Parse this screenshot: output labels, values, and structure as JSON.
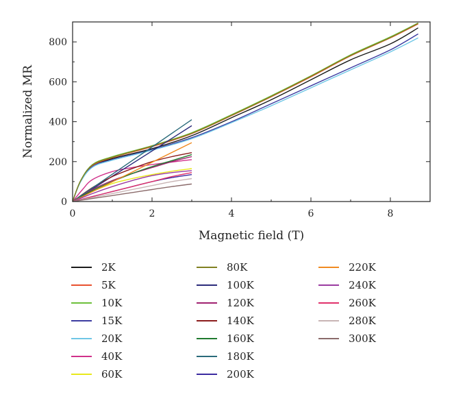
{
  "chart_data": {
    "type": "line",
    "title": "",
    "xlabel": "Magnetic field (T)",
    "ylabel": "Normalized MR",
    "xlim": [
      0,
      9
    ],
    "ylim": [
      0,
      900
    ],
    "xticks": [
      0,
      2,
      4,
      6,
      8
    ],
    "yticks": [
      0,
      200,
      400,
      600,
      800
    ],
    "grid": false,
    "legend_position": "bottom",
    "series": [
      {
        "name": "2K",
        "color": "#1a1a1a",
        "x": [
          0,
          0.2,
          0.5,
          1,
          2,
          3,
          4,
          5,
          6,
          7,
          8,
          8.7
        ],
        "y": [
          0,
          100,
          175,
          215,
          265,
          330,
          420,
          510,
          610,
          710,
          790,
          870
        ]
      },
      {
        "name": "5K",
        "color": "#e8502e",
        "x": [
          0,
          0.2,
          0.5,
          1,
          2,
          3,
          4,
          5,
          6,
          7,
          8,
          8.7
        ],
        "y": [
          0,
          102,
          180,
          220,
          275,
          340,
          430,
          525,
          625,
          730,
          820,
          890
        ]
      },
      {
        "name": "10K",
        "color": "#6cbf3a",
        "x": [
          0,
          0.2,
          0.5,
          1,
          2,
          3,
          4,
          5,
          6,
          7,
          8,
          8.7
        ],
        "y": [
          0,
          104,
          185,
          225,
          280,
          345,
          435,
          530,
          630,
          735,
          825,
          895
        ]
      },
      {
        "name": "15K",
        "color": "#3a3aa0",
        "x": [
          0,
          0.2,
          0.5,
          1,
          2,
          3,
          4,
          5,
          6,
          7,
          8,
          8.7
        ],
        "y": [
          0,
          100,
          175,
          210,
          260,
          320,
          400,
          490,
          580,
          670,
          760,
          840
        ]
      },
      {
        "name": "20K",
        "color": "#6ec6e6",
        "x": [
          0,
          0.2,
          0.5,
          1,
          2,
          3,
          4,
          5,
          6,
          7,
          8,
          8.7
        ],
        "y": [
          0,
          98,
          172,
          207,
          257,
          315,
          395,
          480,
          570,
          660,
          750,
          820
        ]
      },
      {
        "name": "40K",
        "color": "#d0308a",
        "x": [
          0,
          0.25,
          0.5,
          1,
          1.5,
          2,
          2.5,
          3
        ],
        "y": [
          0,
          60,
          110,
          150,
          170,
          185,
          198,
          210
        ]
      },
      {
        "name": "60K",
        "color": "#e8e81a",
        "x": [
          0,
          0.5,
          1,
          1.5,
          2,
          2.5,
          3
        ],
        "y": [
          0,
          50,
          90,
          115,
          135,
          152,
          165
        ]
      },
      {
        "name": "80K",
        "color": "#808020",
        "x": [
          0,
          0.2,
          0.5,
          1,
          2,
          3,
          4,
          5,
          6,
          7,
          8,
          8.7
        ],
        "y": [
          0,
          103,
          183,
          222,
          278,
          342,
          432,
          527,
          628,
          732,
          822,
          893
        ]
      },
      {
        "name": "100K",
        "color": "#2a2a7a",
        "x": [
          0,
          3
        ],
        "y": [
          0,
          380
        ]
      },
      {
        "name": "120K",
        "color": "#a02070",
        "x": [
          0,
          0.5,
          1,
          1.5,
          2,
          2.5,
          3
        ],
        "y": [
          0,
          60,
          105,
          140,
          170,
          200,
          225
        ]
      },
      {
        "name": "140K",
        "color": "#8a1a1a",
        "x": [
          0,
          0.5,
          1,
          1.5,
          2,
          2.5,
          3
        ],
        "y": [
          0,
          70,
          125,
          165,
          200,
          225,
          245
        ]
      },
      {
        "name": "160K",
        "color": "#1f7a2e",
        "x": [
          0,
          0.5,
          1,
          1.5,
          2,
          2.5,
          3
        ],
        "y": [
          0,
          55,
          100,
          140,
          175,
          205,
          235
        ]
      },
      {
        "name": "180K",
        "color": "#2a6a7a",
        "x": [
          0,
          3
        ],
        "y": [
          0,
          410
        ]
      },
      {
        "name": "200K",
        "color": "#3a2aa0",
        "x": [
          0,
          0.5,
          1,
          1.5,
          2,
          2.5,
          3
        ],
        "y": [
          0,
          25,
          50,
          75,
          100,
          120,
          135
        ]
      },
      {
        "name": "220K",
        "color": "#f08a20",
        "x": [
          0,
          3
        ],
        "y": [
          0,
          295
        ]
      },
      {
        "name": "240K",
        "color": "#9a3aa0",
        "x": [
          0,
          0.5,
          1,
          1.5,
          2,
          2.5,
          3
        ],
        "y": [
          0,
          40,
          75,
          105,
          130,
          145,
          155
        ]
      },
      {
        "name": "260K",
        "color": "#e0306a",
        "x": [
          0,
          0.5,
          1,
          1.5,
          2,
          2.5,
          3
        ],
        "y": [
          0,
          25,
          50,
          75,
          100,
          125,
          145
        ]
      },
      {
        "name": "280K",
        "color": "#c8b4b4",
        "x": [
          0,
          0.5,
          1,
          1.5,
          2,
          2.5,
          3
        ],
        "y": [
          0,
          20,
          40,
          60,
          80,
          100,
          115
        ]
      },
      {
        "name": "300K",
        "color": "#8a6a6a",
        "x": [
          0,
          0.5,
          1,
          1.5,
          2,
          2.5,
          3
        ],
        "y": [
          0,
          15,
          30,
          45,
          60,
          75,
          88
        ]
      }
    ]
  }
}
